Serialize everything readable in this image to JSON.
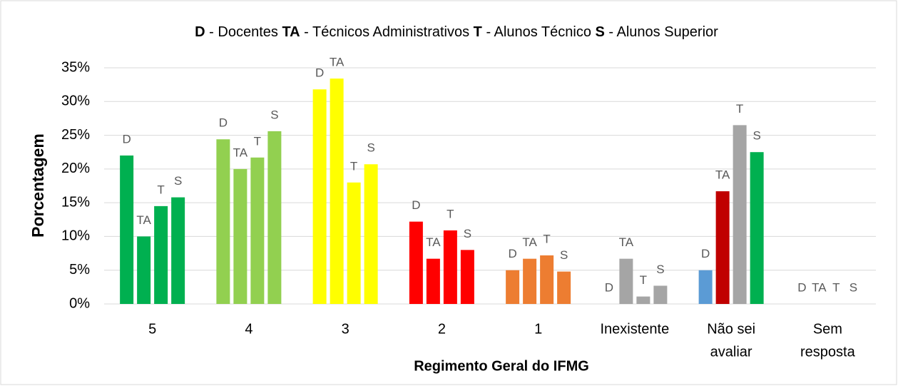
{
  "chart_data": {
    "type": "bar",
    "title": [
      {
        "bold": "D",
        "text": " - Docentes "
      },
      {
        "bold": "TA",
        "text": " - Técnicos Administrativos "
      },
      {
        "bold": "T",
        "text": " - Alunos Técnico "
      },
      {
        "bold": "S",
        "text": " - Alunos Superior"
      }
    ],
    "x_label": "Regimento Geral do IFMG",
    "y_label": "Porcentagem",
    "categories": [
      [
        "5"
      ],
      [
        "4"
      ],
      [
        "3"
      ],
      [
        "2"
      ],
      [
        "1"
      ],
      [
        "Inexistente"
      ],
      [
        "Não sei",
        "avaliar"
      ],
      [
        "Sem",
        "resposta"
      ]
    ],
    "series": [
      {
        "name": "D",
        "values": [
          22,
          24.4,
          31.8,
          12.2,
          5,
          0,
          5,
          0
        ],
        "colors": [
          "#00b050",
          "#92d050",
          "#ffff00",
          "#ff0000",
          "#ed7d31",
          "#a5a5a5",
          "#5b9bd5",
          "#a5a5a5"
        ]
      },
      {
        "name": "TA",
        "values": [
          10,
          20,
          33.4,
          6.7,
          6.7,
          6.7,
          16.7,
          0
        ],
        "colors": [
          "#00b050",
          "#92d050",
          "#ffff00",
          "#ff0000",
          "#ed7d31",
          "#a5a5a5",
          "#c00000",
          "#a5a5a5"
        ]
      },
      {
        "name": "T",
        "values": [
          14.5,
          21.7,
          18,
          10.9,
          7.2,
          1.1,
          26.5,
          0
        ],
        "colors": [
          "#00b050",
          "#92d050",
          "#ffff00",
          "#ff0000",
          "#ed7d31",
          "#a5a5a5",
          "#a5a5a5",
          "#a5a5a5"
        ]
      },
      {
        "name": "S",
        "values": [
          15.8,
          25.6,
          20.7,
          8,
          4.8,
          2.7,
          22.5,
          0
        ],
        "colors": [
          "#00b050",
          "#92d050",
          "#ffff00",
          "#ff0000",
          "#ed7d31",
          "#a5a5a5",
          "#00b050",
          "#a5a5a5"
        ]
      }
    ],
    "ylim": [
      0,
      35
    ],
    "yticks": [
      {
        "value": 0,
        "label": "0%"
      },
      {
        "value": 5,
        "label": "5%"
      },
      {
        "value": 10,
        "label": "10%"
      },
      {
        "value": 15,
        "label": "15%"
      },
      {
        "value": 20,
        "label": "20%"
      },
      {
        "value": 25,
        "label": "25%"
      },
      {
        "value": 30,
        "label": "30%"
      },
      {
        "value": 35,
        "label": "35%"
      }
    ],
    "grid": true
  }
}
